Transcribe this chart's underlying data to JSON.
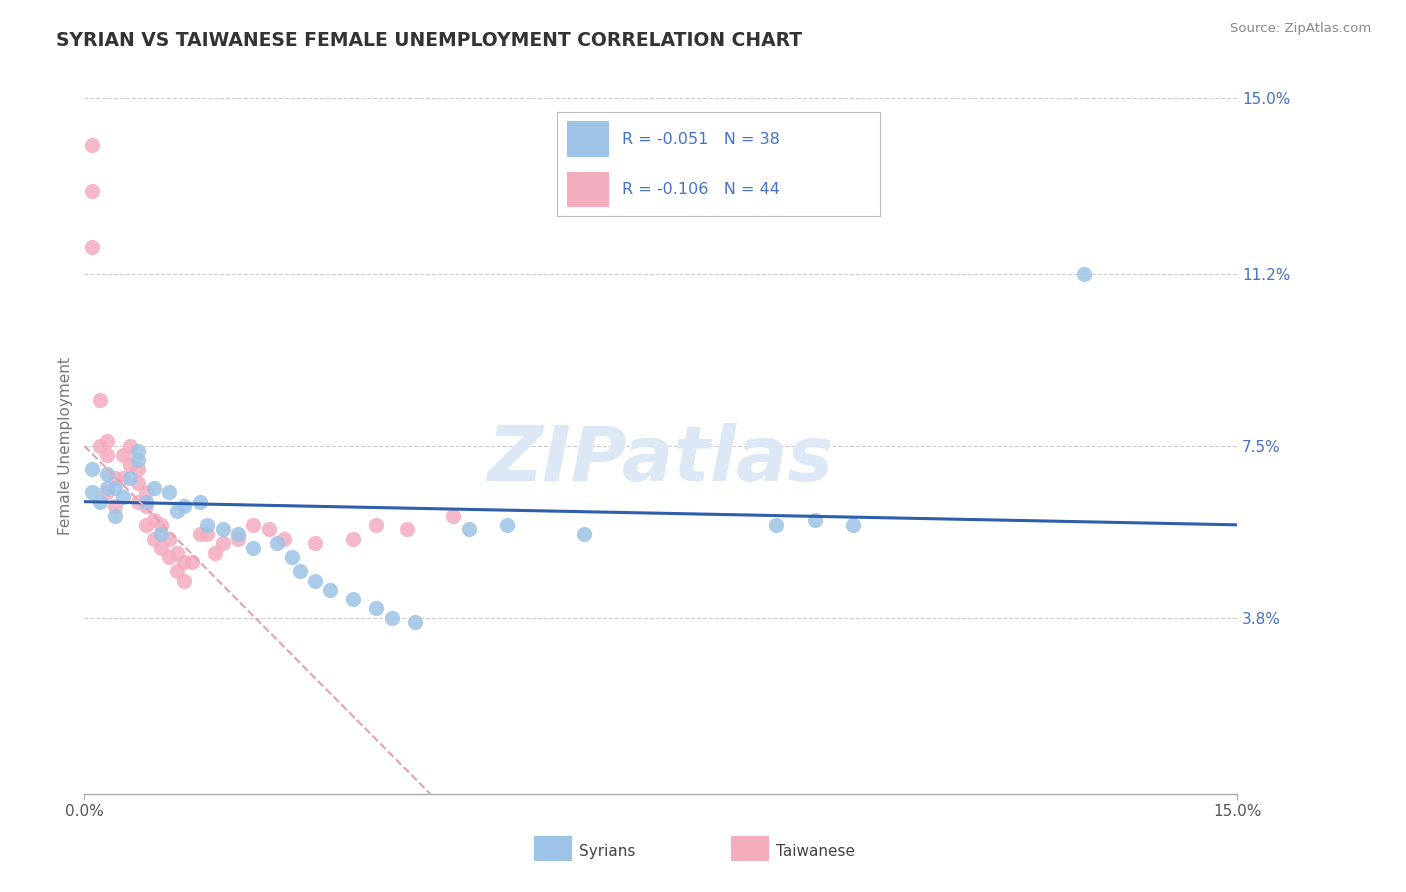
{
  "title": "SYRIAN VS TAIWANESE FEMALE UNEMPLOYMENT CORRELATION CHART",
  "source_text": "Source: ZipAtlas.com",
  "ylabel": "Female Unemployment",
  "xlim": [
    0.0,
    0.15
  ],
  "ylim": [
    0.0,
    0.15
  ],
  "yticks_right": [
    0.15,
    0.112,
    0.075,
    0.038
  ],
  "ytick_right_labels": [
    "15.0%",
    "11.2%",
    "7.5%",
    "3.8%"
  ],
  "background_color": "#ffffff",
  "grid_color": "#cccccc",
  "title_color": "#333333",
  "axis_label_color": "#777777",
  "right_tick_color": "#4472c4",
  "watermark_text": "ZIPatlas",
  "watermark_color": "#dce8f5",
  "legend_r1": "R = -0.051",
  "legend_n1": "N = 38",
  "legend_r2": "R = -0.106",
  "legend_n2": "N = 44",
  "legend_text_color": "#4472c4",
  "syrians_color": "#9dc3e6",
  "taiwanese_color": "#f4acbf",
  "syrians_line_color": "#2e5faa",
  "taiwanese_line_color": "#e8a0b0",
  "syrians_x": [
    0.001,
    0.001,
    0.002,
    0.003,
    0.003,
    0.004,
    0.004,
    0.005,
    0.006,
    0.007,
    0.007,
    0.008,
    0.009,
    0.01,
    0.011,
    0.012,
    0.013,
    0.015,
    0.016,
    0.018,
    0.02,
    0.022,
    0.025,
    0.027,
    0.028,
    0.03,
    0.032,
    0.035,
    0.038,
    0.04,
    0.043,
    0.05,
    0.055,
    0.065,
    0.09,
    0.095,
    0.1,
    0.13
  ],
  "syrians_y": [
    0.065,
    0.07,
    0.063,
    0.066,
    0.069,
    0.06,
    0.066,
    0.064,
    0.068,
    0.072,
    0.074,
    0.063,
    0.066,
    0.056,
    0.065,
    0.061,
    0.062,
    0.063,
    0.058,
    0.057,
    0.056,
    0.053,
    0.054,
    0.051,
    0.048,
    0.046,
    0.044,
    0.042,
    0.04,
    0.038,
    0.037,
    0.057,
    0.058,
    0.056,
    0.058,
    0.059,
    0.058,
    0.112
  ],
  "taiwanese_x": [
    0.001,
    0.001,
    0.001,
    0.002,
    0.002,
    0.003,
    0.003,
    0.003,
    0.004,
    0.004,
    0.005,
    0.005,
    0.006,
    0.006,
    0.007,
    0.007,
    0.007,
    0.008,
    0.008,
    0.008,
    0.009,
    0.009,
    0.01,
    0.01,
    0.011,
    0.011,
    0.012,
    0.012,
    0.013,
    0.013,
    0.014,
    0.015,
    0.016,
    0.017,
    0.018,
    0.02,
    0.022,
    0.024,
    0.026,
    0.03,
    0.035,
    0.038,
    0.042,
    0.048
  ],
  "taiwanese_y": [
    0.14,
    0.13,
    0.118,
    0.085,
    0.075,
    0.076,
    0.073,
    0.065,
    0.068,
    0.062,
    0.073,
    0.068,
    0.075,
    0.071,
    0.07,
    0.067,
    0.063,
    0.065,
    0.062,
    0.058,
    0.059,
    0.055,
    0.058,
    0.053,
    0.055,
    0.051,
    0.052,
    0.048,
    0.05,
    0.046,
    0.05,
    0.056,
    0.056,
    0.052,
    0.054,
    0.055,
    0.058,
    0.057,
    0.055,
    0.054,
    0.055,
    0.058,
    0.057,
    0.06
  ],
  "syrians_trend_x": [
    0.0,
    0.15
  ],
  "syrians_trend_y": [
    0.063,
    0.058
  ],
  "taiwanese_trend_x": [
    0.0,
    0.045
  ],
  "taiwanese_trend_y": [
    0.075,
    0.0
  ]
}
